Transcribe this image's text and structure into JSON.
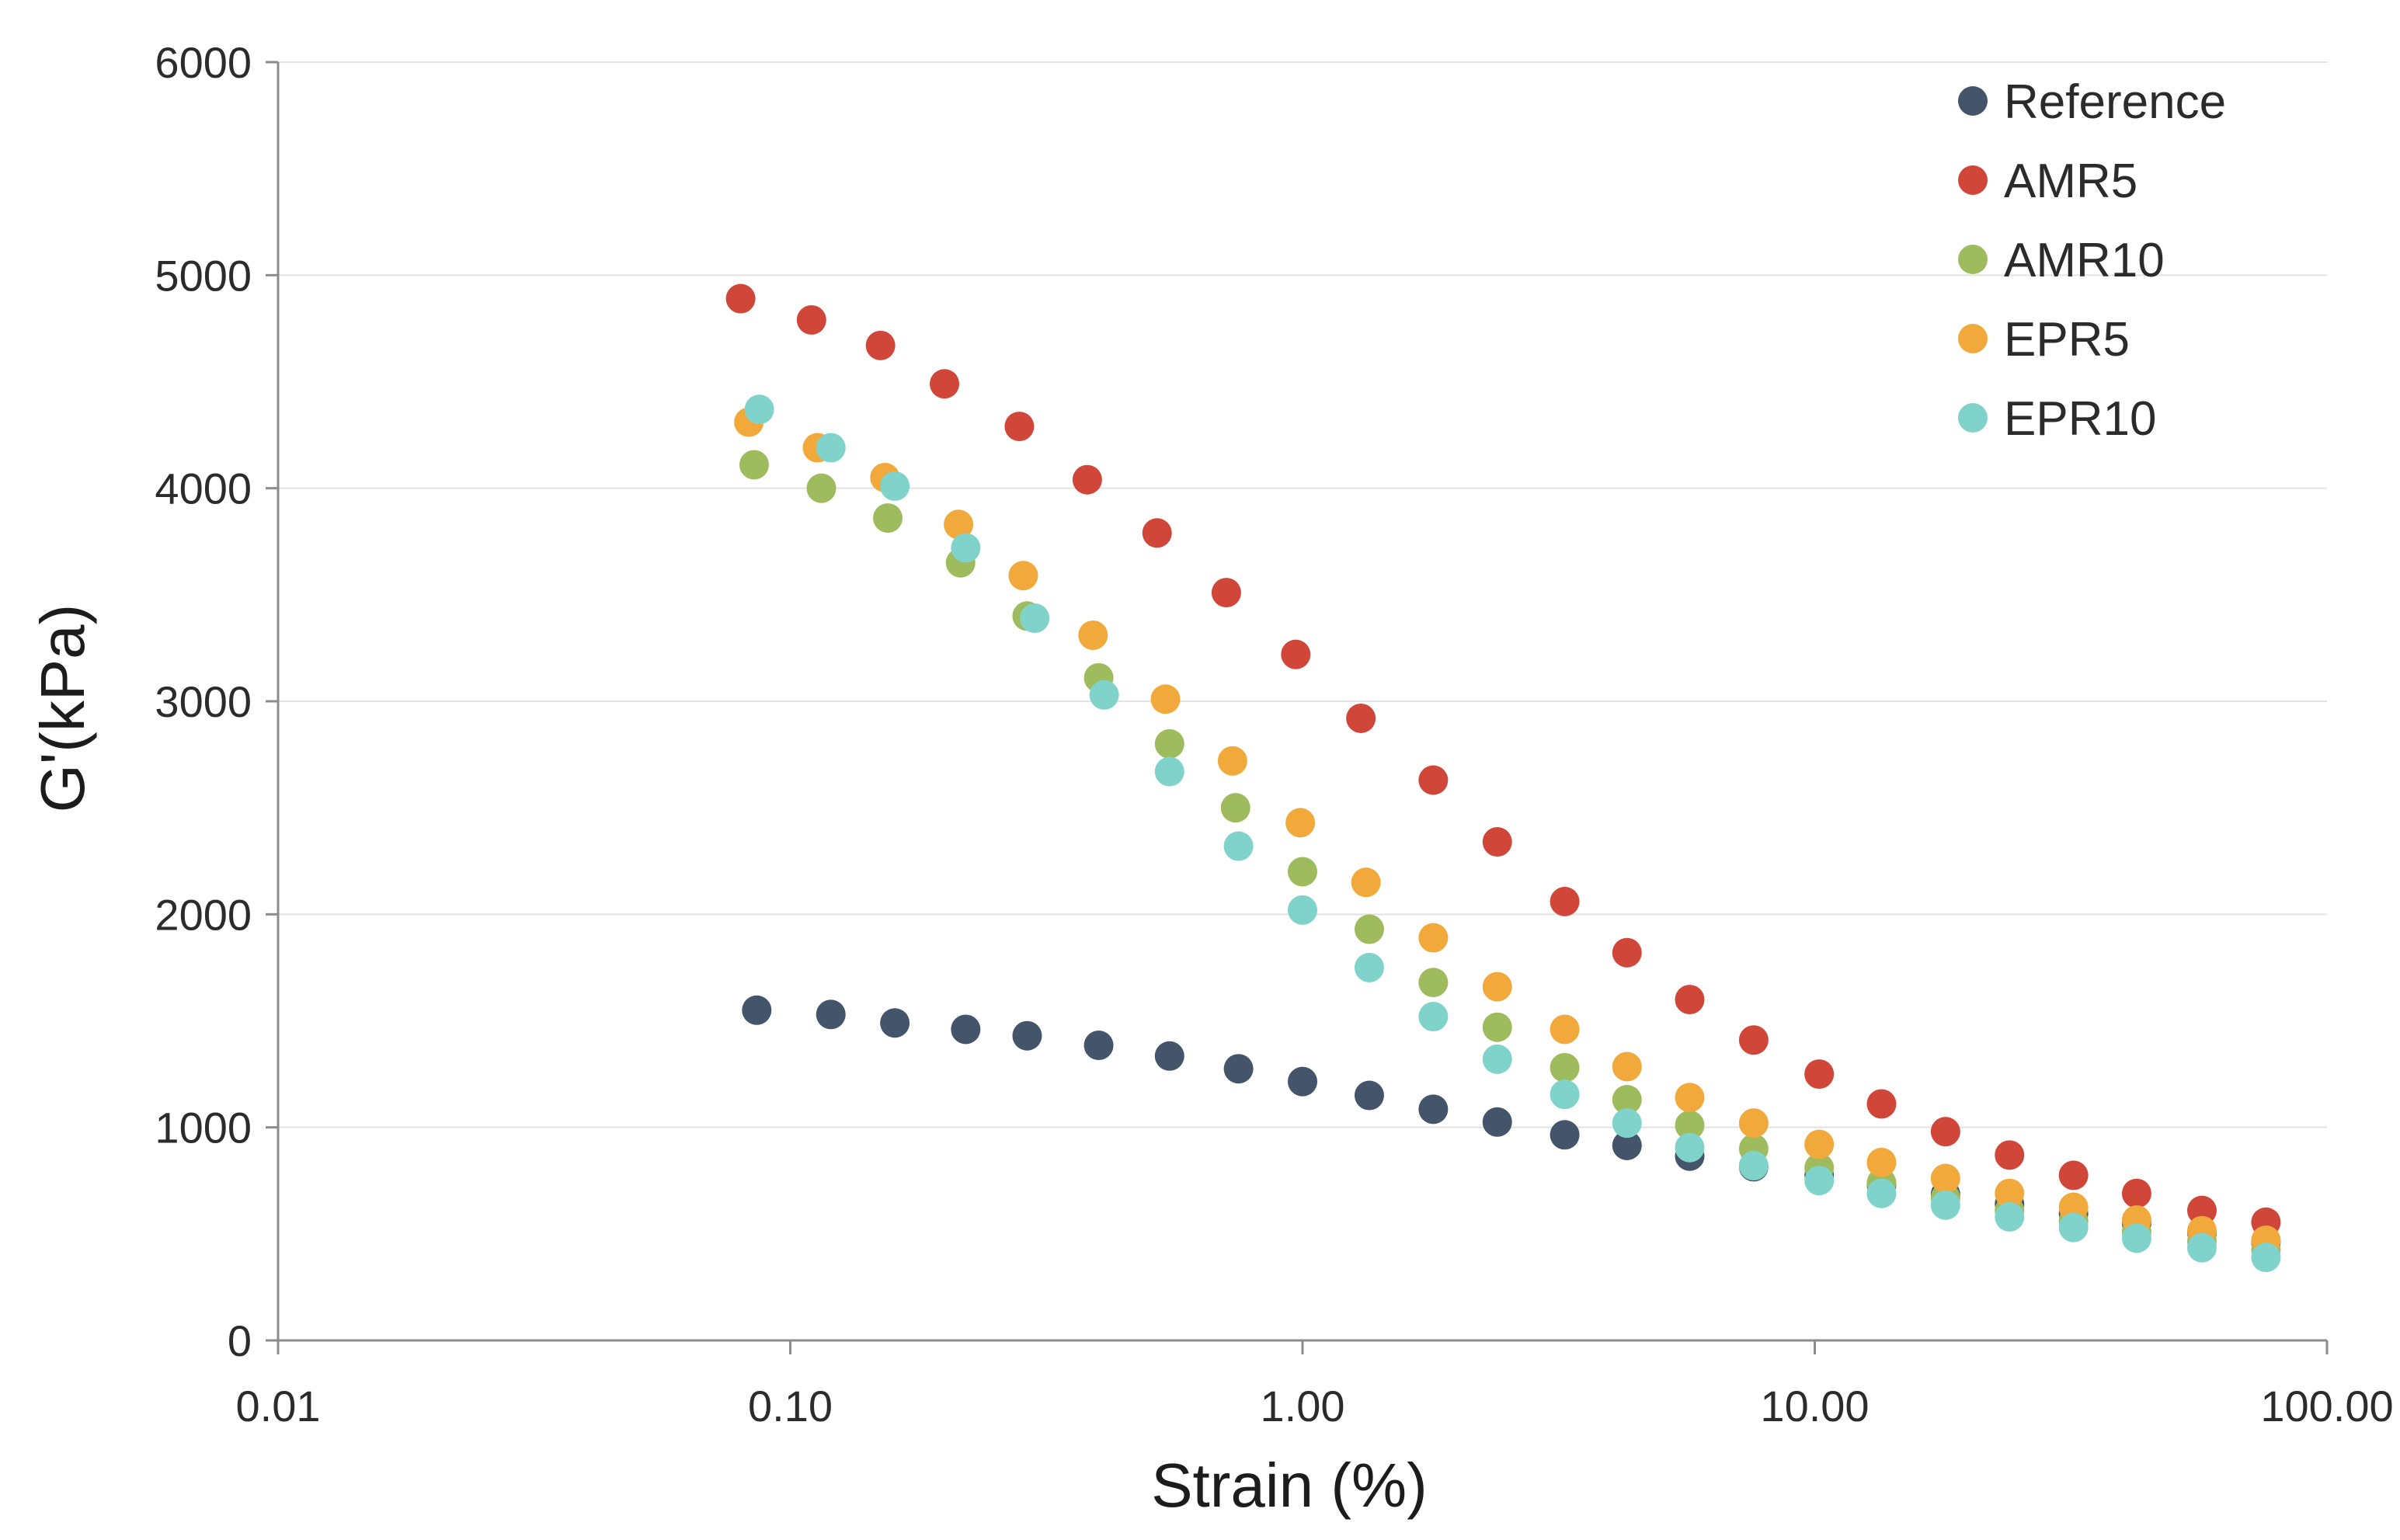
{
  "chart_data": {
    "type": "scatter",
    "title": "",
    "xlabel": "Strain (%)",
    "ylabel": "G'(kPa)",
    "xscale": "log",
    "xlim": [
      0.01,
      100
    ],
    "ylim": [
      0,
      6000
    ],
    "x_ticks": [
      0.01,
      0.1,
      1,
      10,
      100
    ],
    "x_tick_labels": [
      "0.01",
      "0.10",
      "1.00",
      "10.00",
      "100.00"
    ],
    "y_ticks": [
      0,
      1000,
      2000,
      3000,
      4000,
      5000,
      6000
    ],
    "y_tick_labels": [
      "0",
      "1000",
      "2000",
      "3000",
      "4000",
      "5000",
      "6000"
    ],
    "grid": "horizontal",
    "legend_position": "top-right",
    "series": [
      {
        "name": "Reference",
        "color": "#44546A",
        "points": [
          [
            0.086,
            1550
          ],
          [
            0.12,
            1530
          ],
          [
            0.16,
            1490
          ],
          [
            0.22,
            1460
          ],
          [
            0.29,
            1430
          ],
          [
            0.4,
            1385
          ],
          [
            0.55,
            1335
          ],
          [
            0.75,
            1275
          ],
          [
            1.0,
            1215
          ],
          [
            1.35,
            1150
          ],
          [
            1.8,
            1085
          ],
          [
            2.4,
            1025
          ],
          [
            3.25,
            965
          ],
          [
            4.3,
            915
          ],
          [
            5.7,
            865
          ],
          [
            7.6,
            815
          ],
          [
            10.2,
            775
          ],
          [
            13.5,
            730
          ],
          [
            18.0,
            685
          ],
          [
            24.0,
            640
          ],
          [
            32.0,
            595
          ],
          [
            42.5,
            550
          ],
          [
            57.0,
            505
          ],
          [
            76.0,
            460
          ]
        ]
      },
      {
        "name": "AMR5",
        "color": "#D0473A",
        "points": [
          [
            0.08,
            4890
          ],
          [
            0.11,
            4790
          ],
          [
            0.15,
            4670
          ],
          [
            0.2,
            4490
          ],
          [
            0.28,
            4290
          ],
          [
            0.38,
            4040
          ],
          [
            0.52,
            3790
          ],
          [
            0.71,
            3510
          ],
          [
            0.97,
            3220
          ],
          [
            1.3,
            2920
          ],
          [
            1.8,
            2630
          ],
          [
            2.4,
            2340
          ],
          [
            3.25,
            2060
          ],
          [
            4.3,
            1820
          ],
          [
            5.7,
            1600
          ],
          [
            7.6,
            1410
          ],
          [
            10.2,
            1250
          ],
          [
            13.5,
            1110
          ],
          [
            18.0,
            980
          ],
          [
            24.0,
            870
          ],
          [
            32.0,
            775
          ],
          [
            42.5,
            690
          ],
          [
            57.0,
            610
          ],
          [
            76.0,
            555
          ]
        ]
      },
      {
        "name": "AMR10",
        "color": "#9EBB5E",
        "points": [
          [
            0.085,
            4110
          ],
          [
            0.115,
            4000
          ],
          [
            0.155,
            3860
          ],
          [
            0.215,
            3650
          ],
          [
            0.29,
            3400
          ],
          [
            0.4,
            3110
          ],
          [
            0.55,
            2800
          ],
          [
            0.74,
            2500
          ],
          [
            1.0,
            2200
          ],
          [
            1.35,
            1930
          ],
          [
            1.8,
            1680
          ],
          [
            2.4,
            1470
          ],
          [
            3.25,
            1280
          ],
          [
            4.3,
            1130
          ],
          [
            5.7,
            1010
          ],
          [
            7.6,
            900
          ],
          [
            10.2,
            810
          ],
          [
            13.5,
            740
          ],
          [
            18.0,
            670
          ],
          [
            24.0,
            610
          ],
          [
            32.0,
            560
          ],
          [
            42.5,
            510
          ],
          [
            57.0,
            465
          ],
          [
            76.0,
            425
          ]
        ]
      },
      {
        "name": "EPR5",
        "color": "#F2A93B",
        "points": [
          [
            0.083,
            4310
          ],
          [
            0.113,
            4190
          ],
          [
            0.153,
            4050
          ],
          [
            0.213,
            3830
          ],
          [
            0.285,
            3590
          ],
          [
            0.39,
            3310
          ],
          [
            0.54,
            3010
          ],
          [
            0.73,
            2720
          ],
          [
            0.99,
            2430
          ],
          [
            1.33,
            2150
          ],
          [
            1.8,
            1890
          ],
          [
            2.4,
            1660
          ],
          [
            3.25,
            1460
          ],
          [
            4.3,
            1285
          ],
          [
            5.7,
            1140
          ],
          [
            7.6,
            1020
          ],
          [
            10.2,
            920
          ],
          [
            13.5,
            835
          ],
          [
            18.0,
            760
          ],
          [
            24.0,
            690
          ],
          [
            32.0,
            625
          ],
          [
            42.5,
            565
          ],
          [
            57.0,
            515
          ],
          [
            76.0,
            470
          ]
        ]
      },
      {
        "name": "EPR10",
        "color": "#7FD3CB",
        "points": [
          [
            0.087,
            4370
          ],
          [
            0.12,
            4190
          ],
          [
            0.16,
            4010
          ],
          [
            0.22,
            3720
          ],
          [
            0.3,
            3390
          ],
          [
            0.41,
            3030
          ],
          [
            0.55,
            2670
          ],
          [
            0.75,
            2320
          ],
          [
            1.0,
            2020
          ],
          [
            1.35,
            1750
          ],
          [
            1.8,
            1520
          ],
          [
            2.4,
            1320
          ],
          [
            3.25,
            1155
          ],
          [
            4.3,
            1020
          ],
          [
            5.7,
            905
          ],
          [
            7.6,
            820
          ],
          [
            10.2,
            750
          ],
          [
            13.5,
            690
          ],
          [
            18.0,
            635
          ],
          [
            24.0,
            580
          ],
          [
            32.0,
            530
          ],
          [
            42.5,
            480
          ],
          [
            57.0,
            435
          ],
          [
            76.0,
            390
          ]
        ]
      }
    ]
  }
}
